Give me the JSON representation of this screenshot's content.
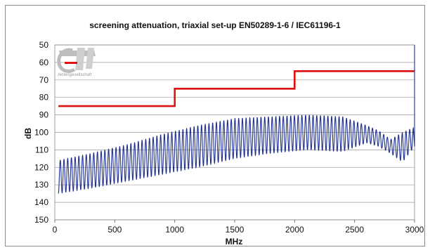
{
  "chart_data": {
    "type": "line",
    "title": "screening attenuation, triaxial set-up EN50289-1-6 / IEC61196-1",
    "xlabel": "MHz",
    "ylabel": "dB",
    "xlim": [
      0,
      3000
    ],
    "ylim": [
      150,
      50
    ],
    "y_reversed": true,
    "grid": true,
    "x_ticks": [
      "0",
      "500",
      "1000",
      "1500",
      "2000",
      "2500",
      "3000"
    ],
    "y_ticks": [
      "50",
      "60",
      "70",
      "80",
      "90",
      "100",
      "110",
      "120",
      "130",
      "140",
      "150"
    ],
    "series": [
      {
        "color": "#dd1111",
        "step": true,
        "x": [
          30,
          1000,
          1000,
          2000,
          2000,
          3000
        ],
        "y": [
          85,
          85,
          75,
          75,
          65,
          65
        ]
      },
      {
        "color": "#1f2f8f",
        "oscillating": true,
        "x": [
          30,
          300,
          600,
          900,
          1200,
          1500,
          1800,
          2100,
          2400,
          2600,
          2700,
          2800,
          2900,
          3000
        ],
        "peaks": [
          116,
          112,
          107,
          101,
          96,
          92,
          91,
          90,
          91,
          96,
          99,
          104,
          100,
          97
        ],
        "troughs": [
          135,
          132,
          128,
          124,
          120,
          115,
          112,
          110,
          111,
          106,
          108,
          112,
          117,
          108
        ]
      }
    ]
  },
  "logo": {
    "text": "Aktiengesellschaft"
  }
}
